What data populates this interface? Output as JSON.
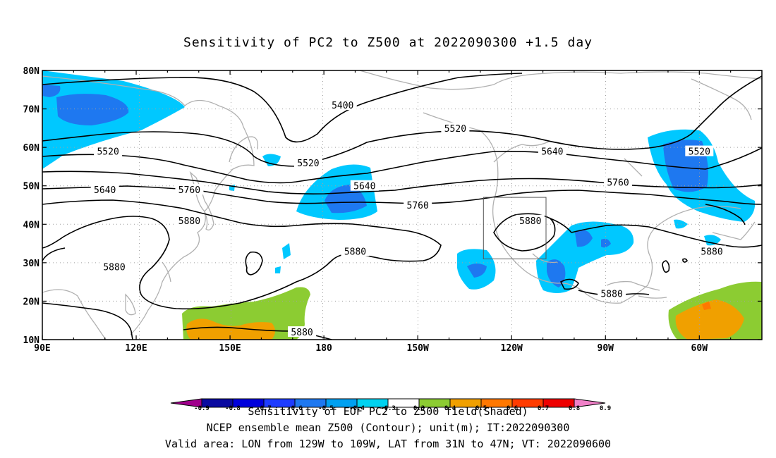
{
  "title": "Sensitivity of PC2 to Z500 at 2022090300 +1.5 day",
  "map": {
    "lon_labels": [
      "90E",
      "120E",
      "150E",
      "180",
      "150W",
      "120W",
      "90W",
      "60W"
    ],
    "lat_labels": [
      "80N",
      "70N",
      "60N",
      "50N",
      "40N",
      "30N",
      "20N",
      "10N"
    ],
    "contour_labels": [
      {
        "text": "5400",
        "lon": -174,
        "lat": 71
      },
      {
        "text": "5520",
        "lon": 111,
        "lat": 59
      },
      {
        "text": "5520",
        "lon": 175,
        "lat": 56
      },
      {
        "text": "5520",
        "lon": -138,
        "lat": 65
      },
      {
        "text": "5520",
        "lon": -60,
        "lat": 59
      },
      {
        "text": "5640",
        "lon": 110,
        "lat": 49
      },
      {
        "text": "5640",
        "lon": -167,
        "lat": 50
      },
      {
        "text": "5640",
        "lon": -107,
        "lat": 59
      },
      {
        "text": "5760",
        "lon": 137,
        "lat": 49
      },
      {
        "text": "5760",
        "lon": -150,
        "lat": 45
      },
      {
        "text": "5760",
        "lon": -86,
        "lat": 51
      },
      {
        "text": "5880",
        "lon": 137,
        "lat": 41
      },
      {
        "text": "5880",
        "lon": -170,
        "lat": 33
      },
      {
        "text": "5880",
        "lon": -114,
        "lat": 41
      },
      {
        "text": "5880",
        "lon": 113,
        "lat": 29
      },
      {
        "text": "5880",
        "lon": -88,
        "lat": 22
      },
      {
        "text": "5880",
        "lon": -56,
        "lat": 33
      },
      {
        "text": "5880",
        "lon": 173,
        "lat": 12
      }
    ],
    "valid_box": {
      "lon_min": -129,
      "lon_max": -109,
      "lat_min": 31,
      "lat_max": 47
    }
  },
  "legend": {
    "labels": [
      "-0.9",
      "-0.8",
      "-0.7",
      "-0.6",
      "-0.5",
      "-0.4",
      "-0.3",
      "0.3",
      "0.4",
      "0.5",
      "0.6",
      "0.7",
      "0.8",
      "0.9"
    ],
    "colors": [
      "#a0008c",
      "#0a0aa0",
      "#0000dc",
      "#1e3cff",
      "#1e78f0",
      "#00a0f0",
      "#00d2f0",
      "#ffffff",
      "#8ccc32",
      "#f0a000",
      "#ff7800",
      "#ff3c00",
      "#ee0000",
      "#f080c8"
    ]
  },
  "caption": {
    "line1": "Sensitivity of EOF PC2 to Z500 field(Shaded)",
    "line2": "NCEP ensemble mean Z500 (Contour); unit(m); IT:2022090300",
    "line3": "Valid area: LON from 129W to 109W, LAT from 31N to 47N; VT: 2022090600"
  }
}
